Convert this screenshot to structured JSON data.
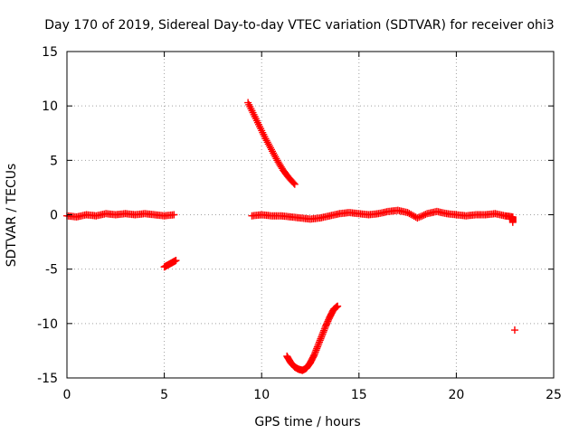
{
  "chart_data": {
    "type": "scatter",
    "title": "Day 170 of 2019, Sidereal Day-to-day VTEC variation (SDTVAR) for receiver ohi3",
    "xlabel": "GPS time / hours",
    "ylabel": "SDTVAR / TECUs",
    "xlim": [
      0,
      25
    ],
    "ylim": [
      -15,
      15
    ],
    "xticks": [
      0,
      5,
      10,
      15,
      20,
      25
    ],
    "yticks": [
      -15,
      -10,
      -5,
      0,
      5,
      10,
      15
    ],
    "grid": true,
    "marker": "+",
    "series_color": "#ff0000",
    "series": [
      {
        "name": "baseline near zero",
        "points": [
          [
            0.0,
            -0.1
          ],
          [
            0.5,
            -0.2
          ],
          [
            1.0,
            0.0
          ],
          [
            1.5,
            -0.1
          ],
          [
            2.0,
            0.1
          ],
          [
            2.5,
            0.0
          ],
          [
            3.0,
            0.1
          ],
          [
            3.5,
            0.0
          ],
          [
            4.0,
            0.1
          ],
          [
            4.5,
            0.0
          ],
          [
            5.0,
            -0.1
          ],
          [
            5.5,
            0.0
          ],
          [
            9.5,
            -0.1
          ],
          [
            10.0,
            0.0
          ],
          [
            10.5,
            -0.1
          ],
          [
            11.0,
            -0.1
          ],
          [
            11.5,
            -0.2
          ],
          [
            12.0,
            -0.3
          ],
          [
            12.5,
            -0.4
          ],
          [
            13.0,
            -0.3
          ],
          [
            13.5,
            -0.1
          ],
          [
            14.0,
            0.1
          ],
          [
            14.5,
            0.2
          ],
          [
            15.0,
            0.1
          ],
          [
            15.5,
            0.0
          ],
          [
            16.0,
            0.1
          ],
          [
            16.5,
            0.3
          ],
          [
            17.0,
            0.4
          ],
          [
            17.5,
            0.2
          ],
          [
            18.0,
            -0.3
          ],
          [
            18.5,
            0.1
          ],
          [
            19.0,
            0.3
          ],
          [
            19.5,
            0.1
          ],
          [
            20.0,
            0.0
          ],
          [
            20.5,
            -0.1
          ],
          [
            21.0,
            0.0
          ],
          [
            21.5,
            0.0
          ],
          [
            22.0,
            0.1
          ],
          [
            22.5,
            -0.1
          ],
          [
            22.9,
            -0.2
          ],
          [
            22.9,
            -0.7
          ]
        ]
      },
      {
        "name": "short low segment",
        "points": [
          [
            5.0,
            -4.8
          ],
          [
            5.2,
            -4.6
          ],
          [
            5.4,
            -4.4
          ],
          [
            5.6,
            -4.2
          ]
        ]
      },
      {
        "name": "descending arc",
        "points": [
          [
            9.3,
            10.3
          ],
          [
            9.6,
            9.2
          ],
          [
            9.9,
            8.1
          ],
          [
            10.2,
            7.0
          ],
          [
            10.5,
            6.0
          ],
          [
            10.8,
            5.0
          ],
          [
            11.1,
            4.1
          ],
          [
            11.4,
            3.4
          ],
          [
            11.7,
            2.8
          ]
        ]
      },
      {
        "name": "u-shaped dip",
        "points": [
          [
            11.3,
            -13.0
          ],
          [
            11.5,
            -13.6
          ],
          [
            11.7,
            -14.0
          ],
          [
            11.9,
            -14.2
          ],
          [
            12.1,
            -14.3
          ],
          [
            12.3,
            -14.1
          ],
          [
            12.5,
            -13.6
          ],
          [
            12.7,
            -12.9
          ],
          [
            12.9,
            -12.0
          ],
          [
            13.1,
            -11.1
          ],
          [
            13.3,
            -10.2
          ],
          [
            13.5,
            -9.4
          ],
          [
            13.7,
            -8.7
          ],
          [
            13.9,
            -8.4
          ]
        ]
      },
      {
        "name": "isolated point",
        "points": [
          [
            23.0,
            -10.6
          ]
        ]
      }
    ]
  }
}
